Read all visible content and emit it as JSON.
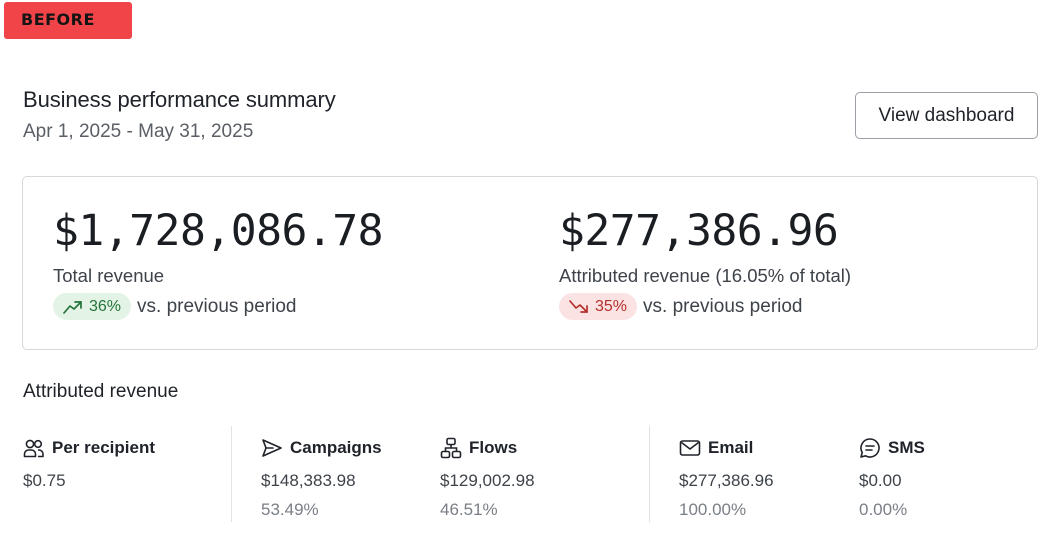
{
  "tag": {
    "label": "BEFORE"
  },
  "header": {
    "title": "Business performance summary",
    "date_range": "Apr 1, 2025 - May 31, 2025",
    "view_dashboard_label": "View dashboard"
  },
  "summary": {
    "total": {
      "value": "$1,728,086.78",
      "label": "Total revenue",
      "change": "36%",
      "direction": "up",
      "comparison": "vs. previous period"
    },
    "attributed": {
      "value": "$277,386.96",
      "label": "Attributed revenue (16.05% of total)",
      "change": "35%",
      "direction": "down",
      "comparison": "vs. previous period"
    }
  },
  "attributed_section": {
    "title": "Attributed revenue",
    "stats": [
      {
        "label": "Per recipient",
        "icon": "users-icon",
        "value": "$0.75",
        "percent": ""
      },
      {
        "label": "Campaigns",
        "icon": "send-icon",
        "value": "$148,383.98",
        "percent": "53.49%"
      },
      {
        "label": "Flows",
        "icon": "flow-icon",
        "value": "$129,002.98",
        "percent": "46.51%"
      },
      {
        "label": "Email",
        "icon": "mail-icon",
        "value": "$277,386.96",
        "percent": "100.00%"
      },
      {
        "label": "SMS",
        "icon": "sms-icon",
        "value": "$0.00",
        "percent": "0.00%"
      }
    ]
  },
  "colors": {
    "tag_bg": "#f04448",
    "positive_bg": "#e3f4e6",
    "positive_text": "#24733a",
    "negative_bg": "#fbe3e3",
    "negative_text": "#b4302c"
  }
}
